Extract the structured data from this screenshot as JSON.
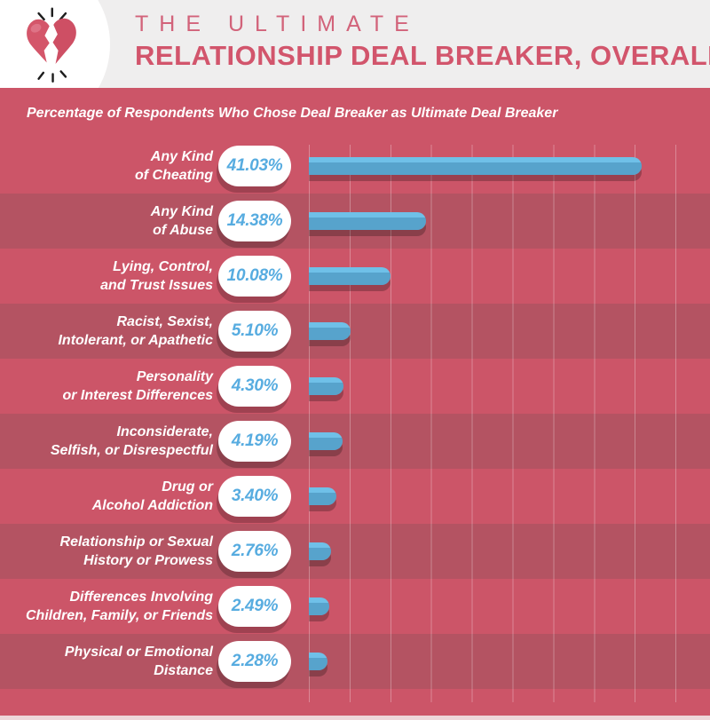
{
  "header": {
    "title_line1": "THE ULTIMATE",
    "title_line2": "RELATIONSHIP DEAL BREAKER, OVERALL",
    "icon": "broken-heart-icon"
  },
  "chart_data": {
    "type": "bar",
    "orientation": "horizontal",
    "title": "Percentage of Respondents Who Chose Deal Breaker as Ultimate Deal Breaker",
    "categories": [
      "Any Kind of Cheating",
      "Any Kind of Abuse",
      "Lying, Control, and Trust Issues",
      "Racist, Sexist, Intolerant, or Apathetic",
      "Personality or Interest Differences",
      "Inconsiderate, Selfish, or Disrespectful",
      "Drug or Alcohol Addiction",
      "Relationship or Sexual History or Prowess",
      "Differences Involving Children, Family, or Friends",
      "Physical or Emotional Distance"
    ],
    "label_lines": [
      [
        "Any Kind",
        "of Cheating"
      ],
      [
        "Any Kind",
        "of Abuse"
      ],
      [
        "Lying, Control,",
        "and Trust Issues"
      ],
      [
        "Racist, Sexist,",
        "Intolerant, or Apathetic"
      ],
      [
        "Personality",
        "or Interest Differences"
      ],
      [
        "Inconsiderate,",
        "Selfish, or Disrespectful"
      ],
      [
        "Drug or",
        "Alcohol Addiction"
      ],
      [
        "Relationship or Sexual",
        "History or Prowess"
      ],
      [
        "Differences Involving",
        "Children, Family, or Friends"
      ],
      [
        "Physical or Emotional",
        "Distance"
      ]
    ],
    "values": [
      41.03,
      14.38,
      10.08,
      5.1,
      4.3,
      4.19,
      3.4,
      2.76,
      2.49,
      2.28
    ],
    "value_labels": [
      "41.03%",
      "14.38%",
      "10.08%",
      "5.10%",
      "4.30%",
      "4.19%",
      "3.40%",
      "2.76%",
      "2.49%",
      "2.28%"
    ],
    "xlabel": "",
    "ylabel": "",
    "xlim": [
      0,
      49.5
    ],
    "gridline_interval_pct": 5,
    "grid": true,
    "legend": false
  },
  "colors": {
    "header_background": "#efeeee",
    "title_pink": "#d2556c",
    "title_pink_light": "#d2637a",
    "heart_red": "#d4566a",
    "chart_background_light": "#cc5568",
    "chart_background_dark": "#b45362",
    "bar_blue": "#57a3cc",
    "bar_blue_highlight": "#6fc0e8",
    "pill_text_blue": "#57ace0",
    "label_white": "#ffffff",
    "bottom_strip": "#eed7da"
  }
}
